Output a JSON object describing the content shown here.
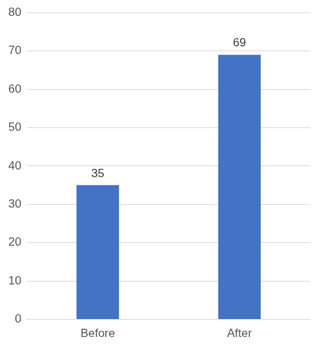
{
  "chart_data": {
    "type": "bar",
    "categories": [
      "Before",
      "After"
    ],
    "values": [
      35,
      69
    ],
    "color": "#4472c4",
    "ylim": [
      0,
      80
    ],
    "yticks": [
      0,
      10,
      20,
      30,
      40,
      50,
      60,
      70,
      80
    ],
    "grid": true,
    "data_labels": true
  }
}
